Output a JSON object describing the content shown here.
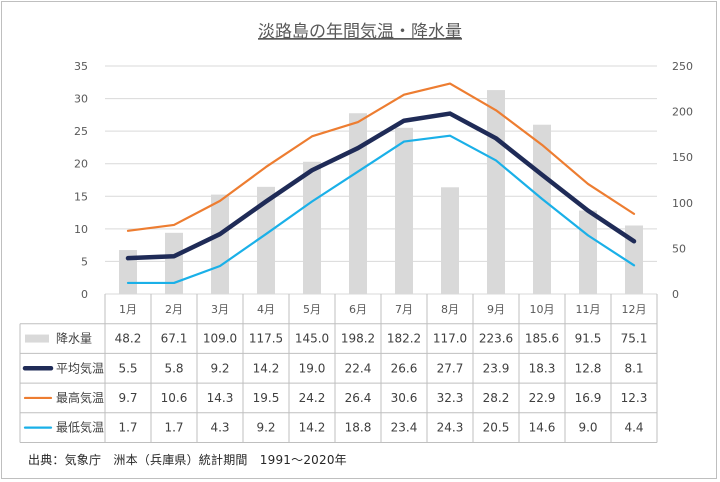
{
  "chart_data": {
    "type": "bar+line",
    "title": "淡路島の年間気温・降水量",
    "categories": [
      "1月",
      "2月",
      "3月",
      "4月",
      "5月",
      "6月",
      "7月",
      "8月",
      "9月",
      "10月",
      "11月",
      "12月"
    ],
    "y_left": {
      "ticks": [
        "0",
        "5",
        "10",
        "15",
        "20",
        "25",
        "30",
        "35"
      ],
      "lim": [
        0,
        35
      ]
    },
    "y_right": {
      "ticks": [
        "0",
        "50",
        "100",
        "150",
        "200",
        "250"
      ],
      "lim": [
        0,
        250
      ]
    },
    "grid": true,
    "series": [
      {
        "name": "降水量",
        "kind": "bar",
        "axis": "right",
        "color": "#d9d9d9",
        "values": [
          48.2,
          67.1,
          109.0,
          117.5,
          145.0,
          198.2,
          182.2,
          117.0,
          223.6,
          185.6,
          91.5,
          75.1
        ],
        "labels": [
          "48.2",
          "67.1",
          "109.0",
          "117.5",
          "145.0",
          "198.2",
          "182.2",
          "117.0",
          "223.6",
          "185.6",
          "91.5",
          "75.1"
        ]
      },
      {
        "name": "平均気温",
        "kind": "line",
        "axis": "left",
        "color": "#1f2b57",
        "values": [
          5.5,
          5.8,
          9.2,
          14.2,
          19.0,
          22.4,
          26.6,
          27.7,
          23.9,
          18.3,
          12.8,
          8.1
        ],
        "labels": [
          "5.5",
          "5.8",
          "9.2",
          "14.2",
          "19.0",
          "22.4",
          "26.6",
          "27.7",
          "23.9",
          "18.3",
          "12.8",
          "8.1"
        ]
      },
      {
        "name": "最高気温",
        "kind": "line",
        "axis": "left",
        "color": "#ed7d31",
        "values": [
          9.7,
          10.6,
          14.3,
          19.5,
          24.2,
          26.4,
          30.6,
          32.3,
          28.2,
          22.9,
          16.9,
          12.3
        ],
        "labels": [
          "9.7",
          "10.6",
          "14.3",
          "19.5",
          "24.2",
          "26.4",
          "30.6",
          "32.3",
          "28.2",
          "22.9",
          "16.9",
          "12.3"
        ]
      },
      {
        "name": "最低気温",
        "kind": "line",
        "axis": "left",
        "color": "#1ab0e8",
        "values": [
          1.7,
          1.7,
          4.3,
          9.2,
          14.2,
          18.8,
          23.4,
          24.3,
          20.5,
          14.6,
          9.0,
          4.4
        ],
        "labels": [
          "1.7",
          "1.7",
          "4.3",
          "9.2",
          "14.2",
          "18.8",
          "23.4",
          "24.3",
          "20.5",
          "14.6",
          "9.0",
          "4.4"
        ]
      }
    ],
    "legend": "data-table"
  },
  "source_note": "出典：気象庁　洲本（兵庫県）統計期間　1991～2020年"
}
